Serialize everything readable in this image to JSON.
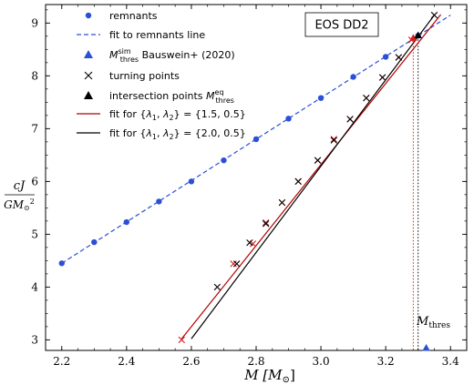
{
  "chart_data": {
    "type": "scatter",
    "annotation_box": "EOS DD2",
    "xlabel": "M [M☉]",
    "ylabel_top": "cJ",
    "ylabel_bottom": "GM☉²",
    "xlim": [
      2.15,
      3.45
    ],
    "ylim": [
      2.8,
      9.35
    ],
    "x_ticks": [
      "2.2",
      "2.4",
      "2.6",
      "2.8",
      "3.0",
      "3.2",
      "3.4"
    ],
    "y_ticks": [
      "3",
      "4",
      "5",
      "6",
      "7",
      "8",
      "9"
    ],
    "legend_position": "top-left",
    "legend": {
      "remnants": "remnants",
      "fit_line": "fit to remnants line",
      "sim_thres": "M_thres^sim Bauswein+ (2020)",
      "turning": "turning points",
      "intersection": "intersection points M_thres^eq",
      "fit_red": "fit for {λ1, λ2} = {1.5, 0.5}",
      "fit_black": "fit for {λ1, λ2} = {2.0, 0.5}"
    },
    "mthres_label": "M_thres",
    "colors": {
      "blue": "#2b4fd6",
      "red": "#d62020",
      "black": "#000000",
      "fit_red": "#b00000"
    },
    "series": [
      {
        "name": "remnants",
        "style": "blue-dot",
        "x": [
          2.2,
          2.3,
          2.4,
          2.5,
          2.6,
          2.7,
          2.8,
          2.9,
          3.0,
          3.1,
          3.2,
          3.3
        ],
        "y": [
          4.45,
          4.85,
          5.23,
          5.62,
          6.0,
          6.4,
          6.8,
          7.19,
          7.58,
          7.98,
          8.36,
          8.76
        ]
      },
      {
        "name": "fit to remnants line",
        "style": "blue-dashed",
        "x": [
          2.2,
          3.4
        ],
        "y": [
          4.45,
          9.15
        ]
      },
      {
        "name": "turning points",
        "style": "red-x",
        "x": [
          2.57,
          2.73,
          2.79,
          2.83,
          2.88,
          2.93,
          2.99,
          3.04,
          3.09,
          3.14,
          3.19,
          3.24,
          3.28
        ],
        "y": [
          3.0,
          4.44,
          4.82,
          5.22,
          5.6,
          6.0,
          6.4,
          6.8,
          7.18,
          7.58,
          7.97,
          8.35,
          8.68
        ]
      },
      {
        "name": "turning points",
        "style": "black-x",
        "x": [
          2.68,
          2.74,
          2.78,
          2.83,
          2.88,
          2.93,
          2.99,
          3.04,
          3.09,
          3.14,
          3.19,
          3.24,
          3.35
        ],
        "y": [
          4.0,
          4.44,
          4.84,
          5.2,
          5.6,
          6.0,
          6.4,
          6.78,
          7.18,
          7.58,
          7.97,
          8.35,
          9.15
        ]
      },
      {
        "name": "fit for {λ1, λ2} = {1.5, 0.5}",
        "style": "red-line",
        "x": [
          2.57,
          3.37
        ],
        "y": [
          3.02,
          9.16
        ]
      },
      {
        "name": "fit for {λ1, λ2} = {2.0, 0.5}",
        "style": "black-line",
        "x": [
          2.6,
          3.35
        ],
        "y": [
          3.02,
          9.15
        ]
      },
      {
        "name": "intersection points M_thres^eq",
        "style": "intersections",
        "x": [
          3.285,
          3.3
        ],
        "y": [
          8.72,
          8.77
        ]
      },
      {
        "name": "M_thres^sim Bauswein+ (2020)",
        "style": "blue-triangle",
        "x": [
          3.325
        ],
        "y": [
          2.85
        ]
      }
    ],
    "mthres_lines": [
      {
        "color": "red",
        "x": 3.285
      },
      {
        "color": "black",
        "x": 3.3
      }
    ]
  }
}
